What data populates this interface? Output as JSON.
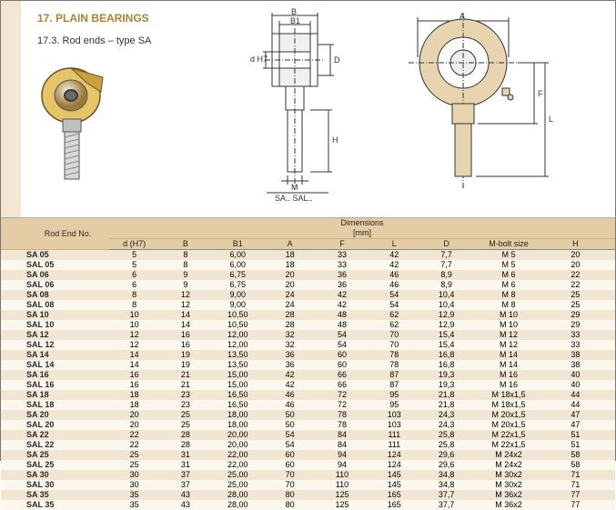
{
  "header": {
    "section_title": "17. PLAIN BEARINGS",
    "subsection": "17.3.  Rod ends – type SA"
  },
  "drawings": {
    "side_labels": {
      "B": "B",
      "B1": "B1",
      "dH7": "d H7",
      "D": "D",
      "H": "H",
      "M": "M",
      "caption": "SA.. SAL.."
    },
    "front_labels": {
      "A": "A",
      "F": "F",
      "L": "L"
    }
  },
  "table": {
    "group_header": {
      "rodend": "Rod End No.",
      "dims": "Dimensions\n[mm]"
    },
    "columns": [
      "d (H7)",
      "B",
      "B1",
      "A",
      "F",
      "L",
      "D",
      "M-bolt size",
      "H"
    ],
    "rows": [
      {
        "name": "SA 05",
        "v": [
          "5",
          "8",
          "6,00",
          "18",
          "33",
          "42",
          "7,7",
          "M 5",
          "20"
        ]
      },
      {
        "name": "SAL 05",
        "v": [
          "5",
          "8",
          "6,00",
          "18",
          "33",
          "42",
          "7,7",
          "M 5",
          "20"
        ]
      },
      {
        "name": "SA 06",
        "v": [
          "6",
          "9",
          "6,75",
          "20",
          "36",
          "46",
          "8,9",
          "M 6",
          "22"
        ]
      },
      {
        "name": "SAL 06",
        "v": [
          "6",
          "9",
          "6,75",
          "20",
          "36",
          "46",
          "8,9",
          "M 6",
          "22"
        ]
      },
      {
        "name": "SA 08",
        "v": [
          "8",
          "12",
          "9,00",
          "24",
          "42",
          "54",
          "10,4",
          "M 8",
          "25"
        ]
      },
      {
        "name": "SAL 08",
        "v": [
          "8",
          "12",
          "9,00",
          "24",
          "42",
          "54",
          "10,4",
          "M 8",
          "25"
        ]
      },
      {
        "name": "SA 10",
        "v": [
          "10",
          "14",
          "10,50",
          "28",
          "48",
          "62",
          "12,9",
          "M 10",
          "29"
        ]
      },
      {
        "name": "SAL 10",
        "v": [
          "10",
          "14",
          "10,50",
          "28",
          "48",
          "62",
          "12,9",
          "M 10",
          "29"
        ]
      },
      {
        "name": "SA 12",
        "v": [
          "12",
          "16",
          "12,00",
          "32",
          "54",
          "70",
          "15,4",
          "M 12",
          "33"
        ]
      },
      {
        "name": "SAL 12",
        "v": [
          "12",
          "16",
          "12,00",
          "32",
          "54",
          "70",
          "15,4",
          "M 12",
          "33"
        ]
      },
      {
        "name": "SA 14",
        "v": [
          "14",
          "19",
          "13,50",
          "36",
          "60",
          "78",
          "16,8",
          "M 14",
          "38"
        ]
      },
      {
        "name": "SAL 14",
        "v": [
          "14",
          "19",
          "13,50",
          "36",
          "60",
          "78",
          "16,8",
          "M 14",
          "38"
        ]
      },
      {
        "name": "SA 16",
        "v": [
          "16",
          "21",
          "15,00",
          "42",
          "66",
          "87",
          "19,3",
          "M 16",
          "40"
        ]
      },
      {
        "name": "SAL 16",
        "v": [
          "16",
          "21",
          "15,00",
          "42",
          "66",
          "87",
          "19,3",
          "M 16",
          "40"
        ]
      },
      {
        "name": "SA 18",
        "v": [
          "18",
          "23",
          "16,50",
          "46",
          "72",
          "95",
          "21,8",
          "M 18x1,5",
          "44"
        ]
      },
      {
        "name": "SAL 18",
        "v": [
          "18",
          "23",
          "16,50",
          "46",
          "72",
          "95",
          "21,8",
          "M 18x1,5",
          "44"
        ]
      },
      {
        "name": "SA 20",
        "v": [
          "20",
          "25",
          "18,00",
          "50",
          "78",
          "103",
          "24,3",
          "M 20x1,5",
          "47"
        ]
      },
      {
        "name": "SAL 20",
        "v": [
          "20",
          "25",
          "18,00",
          "50",
          "78",
          "103",
          "24,3",
          "M 20x1,5",
          "47"
        ]
      },
      {
        "name": "SA 22",
        "v": [
          "22",
          "28",
          "20,00",
          "54",
          "84",
          "111",
          "25,8",
          "M 22x1,5",
          "51"
        ]
      },
      {
        "name": "SAL 22",
        "v": [
          "22",
          "28",
          "20,00",
          "54",
          "84",
          "111",
          "25,8",
          "M 22x1,5",
          "51"
        ]
      },
      {
        "name": "SA 25",
        "v": [
          "25",
          "31",
          "22,00",
          "60",
          "94",
          "124",
          "29,6",
          "M 24x2",
          "58"
        ]
      },
      {
        "name": "SAL 25",
        "v": [
          "25",
          "31",
          "22,00",
          "60",
          "94",
          "124",
          "29,6",
          "M 24x2",
          "58"
        ]
      },
      {
        "name": "SA 30",
        "v": [
          "30",
          "37",
          "25,00",
          "70",
          "110",
          "145",
          "34,8",
          "M 30x2",
          "71"
        ]
      },
      {
        "name": "SAL 30",
        "v": [
          "30",
          "37",
          "25,00",
          "70",
          "110",
          "145",
          "34,8",
          "M 30x2",
          "71"
        ]
      },
      {
        "name": "SA 35",
        "v": [
          "35",
          "43",
          "28,00",
          "80",
          "125",
          "165",
          "37,7",
          "M 36x2",
          "77"
        ]
      },
      {
        "name": "SAL 35",
        "v": [
          "35",
          "43",
          "28,00",
          "80",
          "125",
          "165",
          "37,7",
          "M 36x2",
          "77"
        ]
      }
    ]
  },
  "style": {
    "header_bg": "#e4cda4",
    "row_even_bg": "#f1e6d4",
    "row_odd_bg": "#fbf7ed",
    "accent": "#b0822f",
    "drawing_fill": "#e8d5b0",
    "drawing_stroke": "#333333",
    "iso_yellow": "#e8c468",
    "iso_grey": "#bfbfbf"
  }
}
